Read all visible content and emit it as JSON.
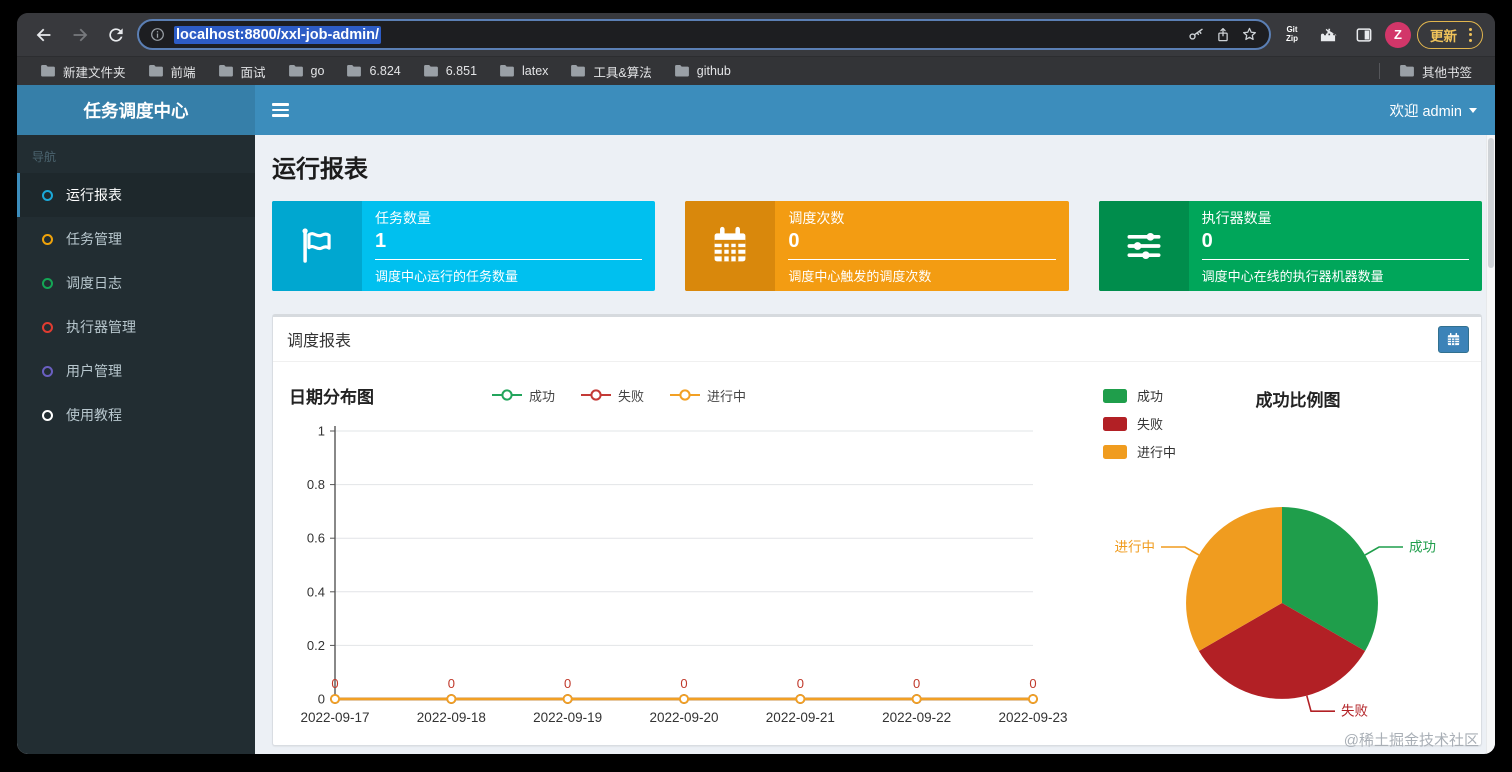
{
  "browser": {
    "url": "localhost:8800/xxl-job-admin/",
    "bookmarks": [
      "新建文件夹",
      "前端",
      "面试",
      "go",
      "6.824",
      "6.851",
      "latex",
      "工具&算法",
      "github"
    ],
    "other_bookmarks": "其他书签",
    "extension_lines": [
      "Git",
      "Zip"
    ],
    "avatar_letter": "Z",
    "update_label": "更新"
  },
  "app": {
    "brand": "任务调度中心",
    "nav_caption": "导航",
    "menu": [
      {
        "label": "运行报表",
        "color": "#1ba8d8",
        "active": true
      },
      {
        "label": "任务管理",
        "color": "#f0a30a",
        "active": false
      },
      {
        "label": "调度日志",
        "color": "#14a655",
        "active": false
      },
      {
        "label": "执行器管理",
        "color": "#e03c31",
        "active": false
      },
      {
        "label": "用户管理",
        "color": "#6a5fc1",
        "active": false
      },
      {
        "label": "使用教程",
        "color": "#ffffff",
        "active": false
      }
    ],
    "welcome": "欢迎 admin",
    "page_title": "运行报表",
    "cards": [
      {
        "title": "任务数量",
        "value": "1",
        "desc": "调度中心运行的任务数量",
        "bg": "#00c0ef",
        "icon_bg": "#00a7d0",
        "icon": "flag-icon"
      },
      {
        "title": "调度次数",
        "value": "0",
        "desc": "调度中心触发的调度次数",
        "bg": "#f39c12",
        "icon_bg": "#d9880c",
        "icon": "calendar-icon"
      },
      {
        "title": "执行器数量",
        "value": "0",
        "desc": "调度中心在线的执行器机器数量",
        "bg": "#00a65a",
        "icon_bg": "#008d4c",
        "icon": "sliders-icon"
      }
    ],
    "panel_title": "调度报表"
  },
  "chart_data": [
    {
      "type": "line",
      "title": "日期分布图",
      "x": [
        "2022-09-17",
        "2022-09-18",
        "2022-09-19",
        "2022-09-20",
        "2022-09-21",
        "2022-09-22",
        "2022-09-23"
      ],
      "series": [
        {
          "name": "成功",
          "color": "#23a55c",
          "values": [
            0,
            0,
            0,
            0,
            0,
            0,
            0
          ]
        },
        {
          "name": "失败",
          "color": "#c43a36",
          "values": [
            0,
            0,
            0,
            0,
            0,
            0,
            0
          ]
        },
        {
          "name": "进行中",
          "color": "#f2a024",
          "values": [
            0,
            0,
            0,
            0,
            0,
            0,
            0
          ]
        }
      ],
      "ylim": [
        0,
        1
      ],
      "yticks": [
        0,
        0.2,
        0.4,
        0.6,
        0.8,
        1
      ],
      "grid": true,
      "legend_position": "top-center",
      "point_labels": {
        "series": "失败",
        "color": "#c0392b"
      }
    },
    {
      "type": "pie",
      "title": "成功比例图",
      "legend_position": "top-left",
      "slices": [
        {
          "name": "成功",
          "value": 1,
          "percent": 33.33,
          "color": "#1f9e4b"
        },
        {
          "name": "失败",
          "value": 1,
          "percent": 33.33,
          "color": "#b22025"
        },
        {
          "name": "进行中",
          "value": 1,
          "percent": 33.33,
          "color": "#f09c1f"
        }
      ]
    }
  ],
  "watermark": "@稀土掘金技术社区"
}
